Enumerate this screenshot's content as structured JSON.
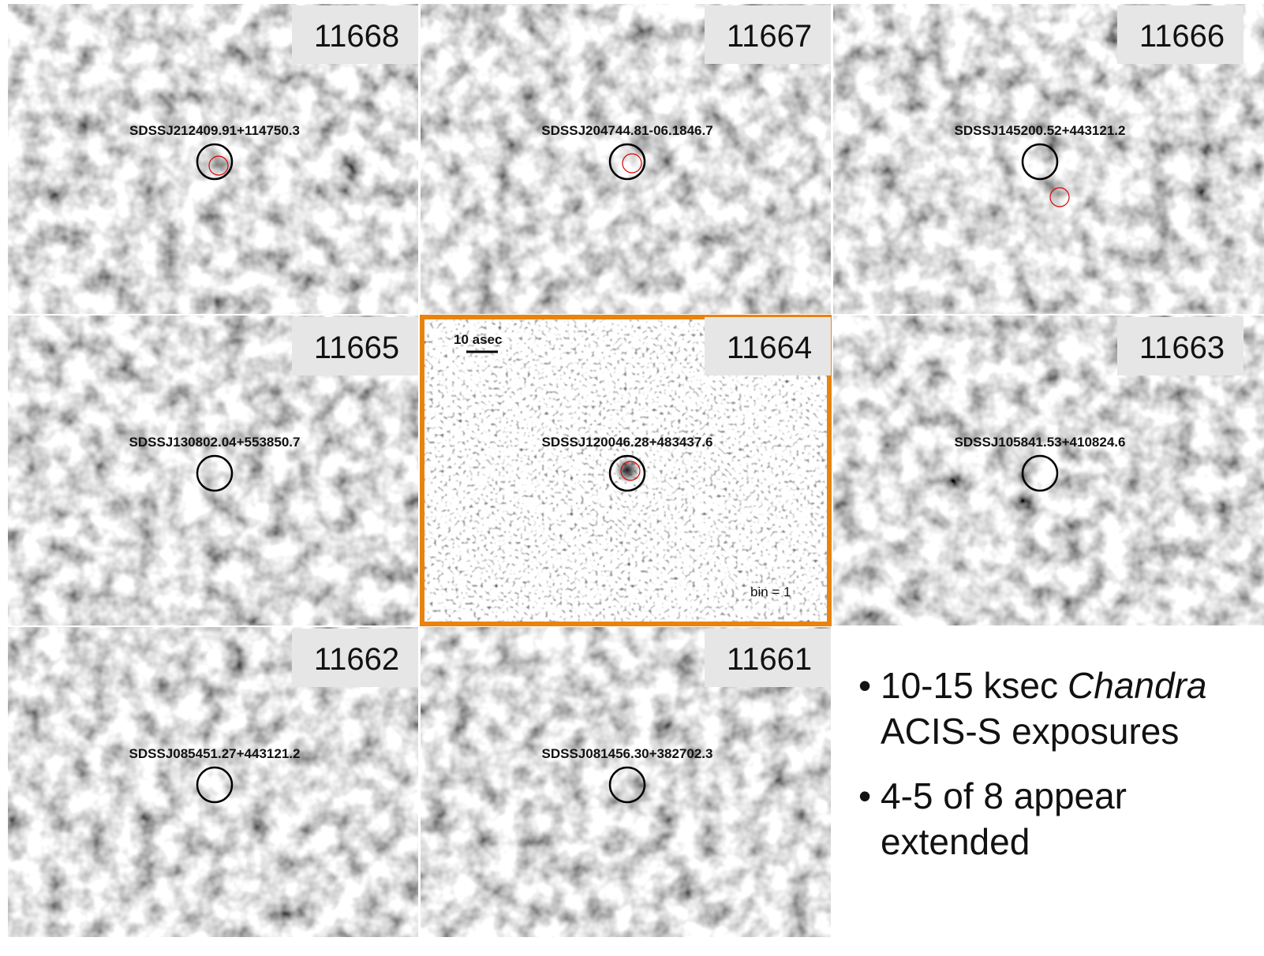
{
  "panels": [
    {
      "id": "11668",
      "source": "SDSSJ212409.91+114750.3"
    },
    {
      "id": "11667",
      "source": "SDSSJ204744.81-06.1846.7"
    },
    {
      "id": "11666",
      "source": "SDSSJ145200.52+443121.2"
    },
    {
      "id": "11665",
      "source": "SDSSJ130802.04+553850.7"
    },
    {
      "id": "11664",
      "source": "SDSSJ120046.28+483437.6",
      "scale": "10 asec",
      "bin": "bin = 1"
    },
    {
      "id": "11663",
      "source": "SDSSJ105841.53+410824.6"
    },
    {
      "id": "11662",
      "source": "SDSSJ085451.27+443121.2"
    },
    {
      "id": "11661",
      "source": "SDSSJ081456.30+382702.3"
    }
  ],
  "bullets": [
    {
      "before": "10-15 ksec",
      "emphasis": "Chandra",
      "after": "ACIS-S exposures"
    },
    {
      "text": "4-5 of 8 appear extended"
    }
  ]
}
